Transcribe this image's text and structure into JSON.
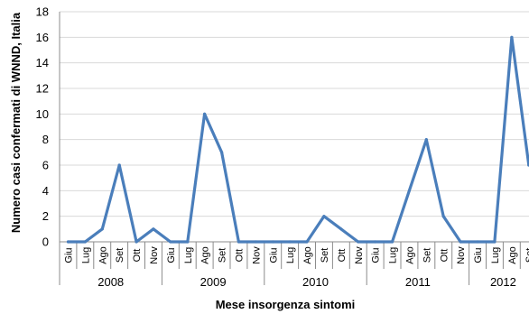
{
  "chart_data": {
    "type": "line",
    "title": "",
    "xlabel": "Mese insorgenza sintomi",
    "ylabel": "Numero casi confermati di WNND, Italia",
    "ylim": [
      0,
      18
    ],
    "yticks": [
      "0",
      "2",
      "4",
      "6",
      "8",
      "10",
      "12",
      "14",
      "16",
      "18"
    ],
    "grid": true,
    "legend": "none",
    "years": [
      {
        "label": "2008",
        "months": [
          "Giu",
          "Lug",
          "Ago",
          "Set",
          "Ott",
          "Nov"
        ]
      },
      {
        "label": "2009",
        "months": [
          "Giu",
          "Lug",
          "Ago",
          "Set",
          "Ott",
          "Nov"
        ]
      },
      {
        "label": "2010",
        "months": [
          "Giu",
          "Lug",
          "Ago",
          "Set",
          "Ott",
          "Nov"
        ]
      },
      {
        "label": "2011",
        "months": [
          "Giu",
          "Lug",
          "Ago",
          "Set",
          "Ott",
          "Nov"
        ]
      },
      {
        "label": "2012",
        "months": [
          "Giu",
          "Lug",
          "Ago",
          "Set"
        ]
      }
    ],
    "values": [
      0,
      0,
      1,
      6,
      0,
      1,
      0,
      0,
      10,
      7,
      0,
      0,
      0,
      0,
      0,
      2,
      1,
      0,
      0,
      0,
      4,
      8,
      2,
      0,
      0,
      0,
      16,
      6
    ],
    "colors": {
      "series": "#4a7ebb",
      "grid": "#d9d9d9",
      "axis": "#8c8c8c"
    }
  }
}
